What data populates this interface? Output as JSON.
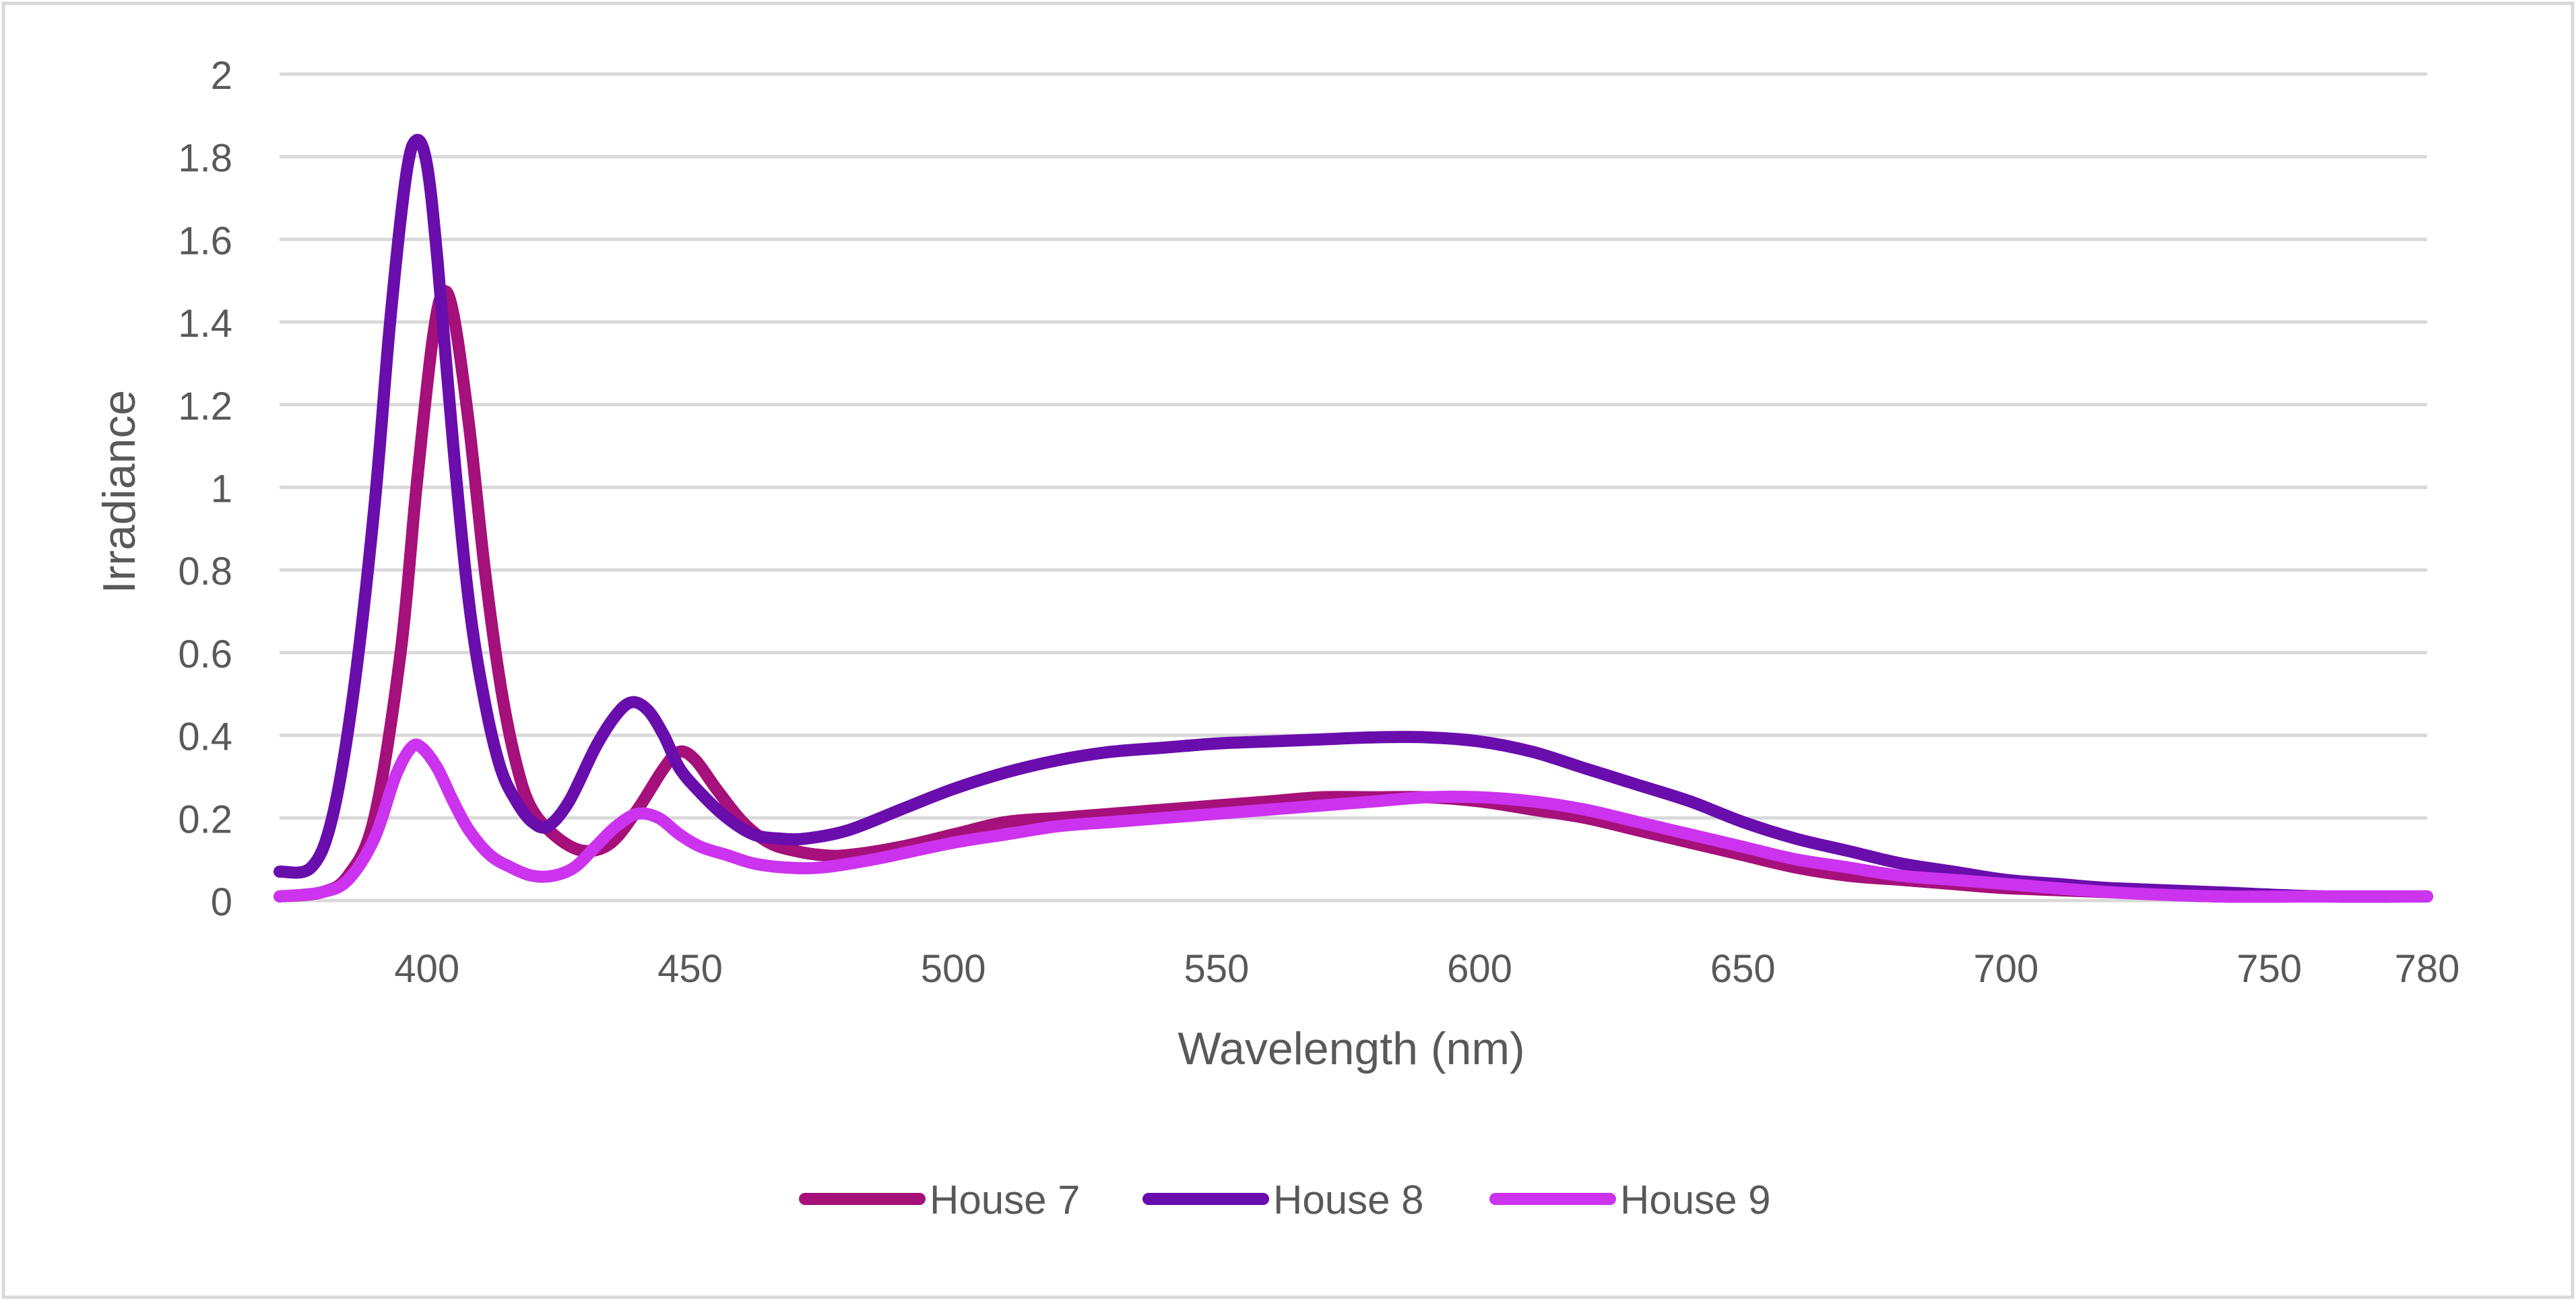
{
  "chart_data": {
    "type": "line",
    "title": "",
    "xlabel": "Wavelength (nm)",
    "ylabel": "Irradiance",
    "xlim": [
      372,
      780
    ],
    "ylim": [
      0,
      2
    ],
    "x_ticks": [
      400,
      450,
      500,
      550,
      600,
      650,
      700,
      750,
      780
    ],
    "y_ticks": [
      {
        "value": 0,
        "label": "0"
      },
      {
        "value": 0.2,
        "label": "0.2"
      },
      {
        "value": 0.4,
        "label": "0.4"
      },
      {
        "value": 0.6,
        "label": "0.6"
      },
      {
        "value": 0.8,
        "label": "0.8"
      },
      {
        "value": 1,
        "label": "1"
      },
      {
        "value": 1.2,
        "label": "1.2"
      },
      {
        "value": 1.4,
        "label": "1.4"
      },
      {
        "value": 1.6,
        "label": "1.6"
      },
      {
        "value": 1.8,
        "label": "1.8"
      },
      {
        "value": 2,
        "label": "2"
      }
    ],
    "grid": true,
    "legend_position": "bottom",
    "series": [
      {
        "name": "House 7",
        "color": "#a5107a",
        "points": [
          [
            372,
            0.01
          ],
          [
            380,
            0.02
          ],
          [
            385,
            0.06
          ],
          [
            390,
            0.2
          ],
          [
            395,
            0.6
          ],
          [
            398,
            1.0
          ],
          [
            401,
            1.35
          ],
          [
            403,
            1.47
          ],
          [
            405,
            1.42
          ],
          [
            408,
            1.15
          ],
          [
            411,
            0.8
          ],
          [
            414,
            0.52
          ],
          [
            417,
            0.33
          ],
          [
            420,
            0.22
          ],
          [
            425,
            0.15
          ],
          [
            430,
            0.12
          ],
          [
            435,
            0.14
          ],
          [
            440,
            0.22
          ],
          [
            445,
            0.32
          ],
          [
            448,
            0.36
          ],
          [
            451,
            0.34
          ],
          [
            455,
            0.27
          ],
          [
            460,
            0.19
          ],
          [
            465,
            0.14
          ],
          [
            470,
            0.12
          ],
          [
            475,
            0.11
          ],
          [
            480,
            0.11
          ],
          [
            490,
            0.13
          ],
          [
            500,
            0.16
          ],
          [
            510,
            0.19
          ],
          [
            520,
            0.2
          ],
          [
            530,
            0.21
          ],
          [
            540,
            0.22
          ],
          [
            550,
            0.23
          ],
          [
            560,
            0.24
          ],
          [
            570,
            0.25
          ],
          [
            580,
            0.25
          ],
          [
            590,
            0.25
          ],
          [
            600,
            0.24
          ],
          [
            610,
            0.22
          ],
          [
            620,
            0.2
          ],
          [
            630,
            0.17
          ],
          [
            640,
            0.14
          ],
          [
            650,
            0.11
          ],
          [
            660,
            0.08
          ],
          [
            670,
            0.06
          ],
          [
            680,
            0.05
          ],
          [
            690,
            0.04
          ],
          [
            700,
            0.03
          ],
          [
            720,
            0.02
          ],
          [
            740,
            0.01
          ],
          [
            760,
            0.01
          ],
          [
            780,
            0.01
          ]
        ]
      },
      {
        "name": "House 8",
        "color": "#6a0dad",
        "points": [
          [
            372,
            0.07
          ],
          [
            378,
            0.08
          ],
          [
            382,
            0.2
          ],
          [
            386,
            0.5
          ],
          [
            390,
            0.95
          ],
          [
            393,
            1.4
          ],
          [
            396,
            1.75
          ],
          [
            398,
            1.84
          ],
          [
            400,
            1.78
          ],
          [
            402,
            1.55
          ],
          [
            405,
            1.1
          ],
          [
            408,
            0.72
          ],
          [
            411,
            0.48
          ],
          [
            414,
            0.32
          ],
          [
            417,
            0.24
          ],
          [
            420,
            0.19
          ],
          [
            423,
            0.18
          ],
          [
            427,
            0.24
          ],
          [
            432,
            0.37
          ],
          [
            436,
            0.45
          ],
          [
            439,
            0.48
          ],
          [
            442,
            0.46
          ],
          [
            445,
            0.4
          ],
          [
            448,
            0.32
          ],
          [
            452,
            0.26
          ],
          [
            457,
            0.2
          ],
          [
            462,
            0.16
          ],
          [
            467,
            0.15
          ],
          [
            472,
            0.15
          ],
          [
            480,
            0.17
          ],
          [
            490,
            0.22
          ],
          [
            500,
            0.27
          ],
          [
            510,
            0.31
          ],
          [
            520,
            0.34
          ],
          [
            530,
            0.36
          ],
          [
            540,
            0.37
          ],
          [
            550,
            0.38
          ],
          [
            560,
            0.385
          ],
          [
            570,
            0.39
          ],
          [
            580,
            0.395
          ],
          [
            590,
            0.395
          ],
          [
            600,
            0.385
          ],
          [
            610,
            0.36
          ],
          [
            620,
            0.32
          ],
          [
            630,
            0.28
          ],
          [
            640,
            0.24
          ],
          [
            650,
            0.19
          ],
          [
            660,
            0.15
          ],
          [
            670,
            0.12
          ],
          [
            680,
            0.09
          ],
          [
            690,
            0.07
          ],
          [
            700,
            0.05
          ],
          [
            710,
            0.04
          ],
          [
            720,
            0.03
          ],
          [
            740,
            0.02
          ],
          [
            760,
            0.01
          ],
          [
            780,
            0.01
          ]
        ]
      },
      {
        "name": "House 9",
        "color": "#cc33ee",
        "points": [
          [
            372,
            0.01
          ],
          [
            380,
            0.02
          ],
          [
            385,
            0.05
          ],
          [
            390,
            0.15
          ],
          [
            394,
            0.3
          ],
          [
            397,
            0.37
          ],
          [
            399,
            0.37
          ],
          [
            402,
            0.32
          ],
          [
            405,
            0.24
          ],
          [
            408,
            0.17
          ],
          [
            412,
            0.11
          ],
          [
            416,
            0.08
          ],
          [
            420,
            0.06
          ],
          [
            424,
            0.06
          ],
          [
            428,
            0.08
          ],
          [
            432,
            0.13
          ],
          [
            436,
            0.18
          ],
          [
            440,
            0.21
          ],
          [
            444,
            0.2
          ],
          [
            448,
            0.16
          ],
          [
            452,
            0.13
          ],
          [
            457,
            0.11
          ],
          [
            462,
            0.09
          ],
          [
            468,
            0.08
          ],
          [
            475,
            0.08
          ],
          [
            485,
            0.1
          ],
          [
            500,
            0.14
          ],
          [
            510,
            0.16
          ],
          [
            520,
            0.18
          ],
          [
            530,
            0.19
          ],
          [
            540,
            0.2
          ],
          [
            550,
            0.21
          ],
          [
            560,
            0.22
          ],
          [
            570,
            0.23
          ],
          [
            580,
            0.24
          ],
          [
            590,
            0.25
          ],
          [
            600,
            0.25
          ],
          [
            610,
            0.24
          ],
          [
            620,
            0.22
          ],
          [
            630,
            0.19
          ],
          [
            640,
            0.16
          ],
          [
            650,
            0.13
          ],
          [
            660,
            0.1
          ],
          [
            670,
            0.08
          ],
          [
            680,
            0.06
          ],
          [
            690,
            0.05
          ],
          [
            700,
            0.04
          ],
          [
            720,
            0.02
          ],
          [
            740,
            0.01
          ],
          [
            760,
            0.01
          ],
          [
            780,
            0.01
          ]
        ]
      }
    ]
  }
}
